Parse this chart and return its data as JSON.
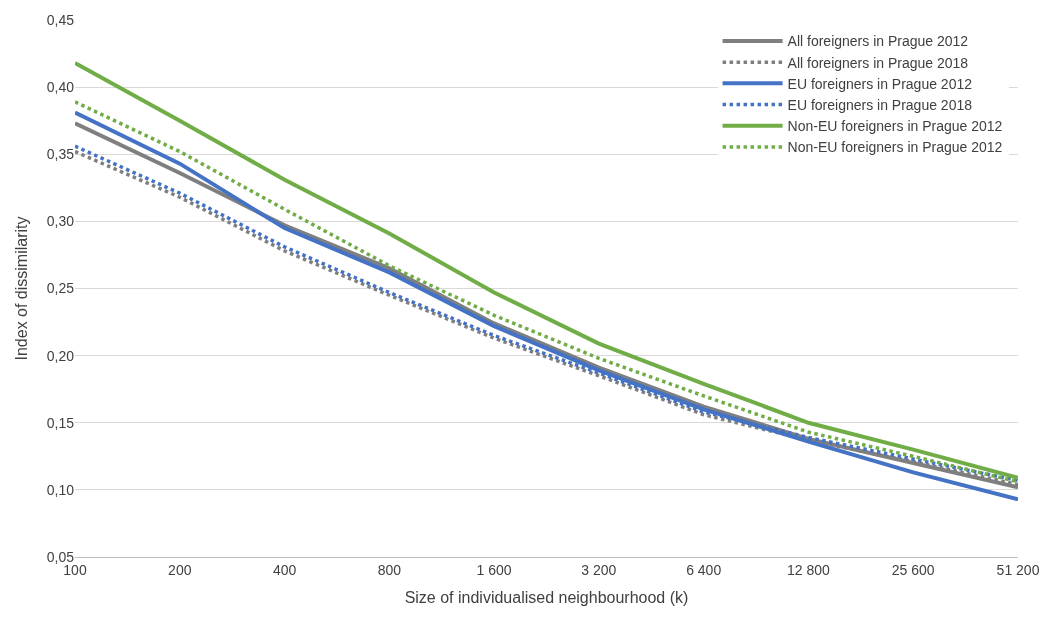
{
  "chart_data": {
    "type": "line",
    "xlabel": "Size of individualised neighbourhood (k)",
    "ylabel": "Index of dissimilarity",
    "categories": [
      "100",
      "200",
      "400",
      "800",
      "1 600",
      "3 200",
      "6 400",
      "12 800",
      "25 600",
      "51 200"
    ],
    "series": [
      {
        "name": "All foreigners in Prague 2012",
        "color": "#7f7f7f",
        "line_style": "solid",
        "values": [
          0.373,
          0.336,
          0.297,
          0.265,
          0.224,
          0.191,
          0.162,
          0.138,
          0.12,
          0.102
        ]
      },
      {
        "name": "All foreigners in Prague 2018",
        "color": "#7f7f7f",
        "line_style": "dotted",
        "values": [
          0.352,
          0.318,
          0.278,
          0.245,
          0.213,
          0.185,
          0.156,
          0.137,
          0.121,
          0.104
        ]
      },
      {
        "name": "EU foreigners in Prague 2012",
        "color": "#4472c4",
        "line_style": "solid",
        "values": [
          0.381,
          0.343,
          0.295,
          0.262,
          0.222,
          0.189,
          0.16,
          0.136,
          0.113,
          0.093
        ]
      },
      {
        "name": "EU foreigners in Prague 2018",
        "color": "#4472c4",
        "line_style": "dotted",
        "values": [
          0.356,
          0.321,
          0.281,
          0.247,
          0.215,
          0.187,
          0.158,
          0.139,
          0.123,
          0.107
        ]
      },
      {
        "name": "Non-EU foreigners in Prague 2012",
        "color": "#70ad47",
        "line_style": "solid",
        "values": [
          0.418,
          0.375,
          0.331,
          0.291,
          0.247,
          0.209,
          0.179,
          0.15,
          0.13,
          0.109
        ]
      },
      {
        "name": "Non-EU foreigners in Prague 2012",
        "color": "#70ad47",
        "line_style": "dotted",
        "values": [
          0.389,
          0.352,
          0.309,
          0.267,
          0.23,
          0.198,
          0.17,
          0.143,
          0.125,
          0.106
        ]
      }
    ],
    "ylim": [
      0.05,
      0.45
    ],
    "yticks": [
      {
        "value": 0.05,
        "label": "0,05"
      },
      {
        "value": 0.1,
        "label": "0,10"
      },
      {
        "value": 0.15,
        "label": "0,15"
      },
      {
        "value": 0.2,
        "label": "0,20"
      },
      {
        "value": 0.25,
        "label": "0,25"
      },
      {
        "value": 0.3,
        "label": "0,30"
      },
      {
        "value": 0.35,
        "label": "0,35"
      },
      {
        "value": 0.4,
        "label": "0,40"
      },
      {
        "value": 0.45,
        "label": "0,45"
      }
    ],
    "grid": "y",
    "legend": "top right",
    "marker": "none"
  }
}
